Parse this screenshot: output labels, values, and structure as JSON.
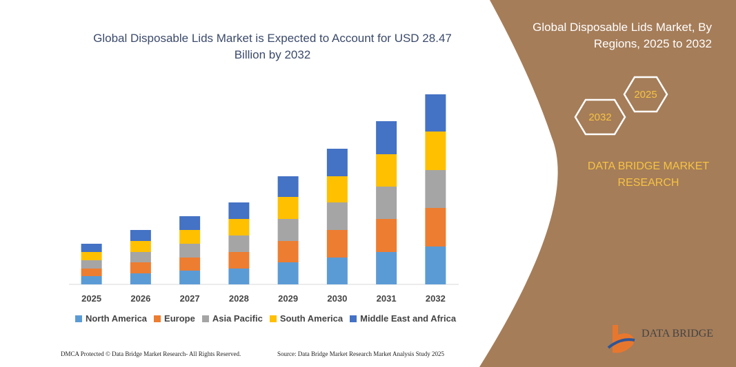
{
  "chart_data": {
    "type": "stacked-bar",
    "title": "Global Disposable Lids Market is Expected to Account for USD 28.47 Billion by 2032",
    "categories": [
      "2025",
      "2026",
      "2027",
      "2028",
      "2029",
      "2030",
      "2031",
      "2032"
    ],
    "series": [
      {
        "name": "North America",
        "color": "#5b9bd5",
        "values": [
          12,
          16,
          20,
          23,
          32,
          39,
          47,
          55
        ]
      },
      {
        "name": "Europe",
        "color": "#ed7d31",
        "values": [
          11,
          16,
          19,
          24,
          31,
          40,
          48,
          56
        ]
      },
      {
        "name": "Asia Pacific",
        "color": "#a5a5a5",
        "values": [
          12,
          15,
          20,
          24,
          32,
          40,
          47,
          55
        ]
      },
      {
        "name": "South America",
        "color": "#ffc000",
        "values": [
          12,
          16,
          20,
          24,
          32,
          38,
          47,
          56
        ]
      },
      {
        "name": "Middle East and Africa",
        "color": "#4472c4",
        "values": [
          12,
          16,
          20,
          24,
          30,
          40,
          48,
          54
        ]
      }
    ],
    "ylim": [
      0,
      276
    ]
  },
  "side_title": "Global Disposable Lids Market, By Regions, 2025 to 2032",
  "hexagons": [
    "2025",
    "2032"
  ],
  "brand": "DATA BRIDGE MARKET RESEARCH",
  "logo_text": "DATA BRIDGE",
  "footer_left": "DMCA Protected © Data Bridge Market Research- All Rights Reserved.",
  "footer_right": "Source: Data Bridge Market Research Market Analysis Study 2025"
}
